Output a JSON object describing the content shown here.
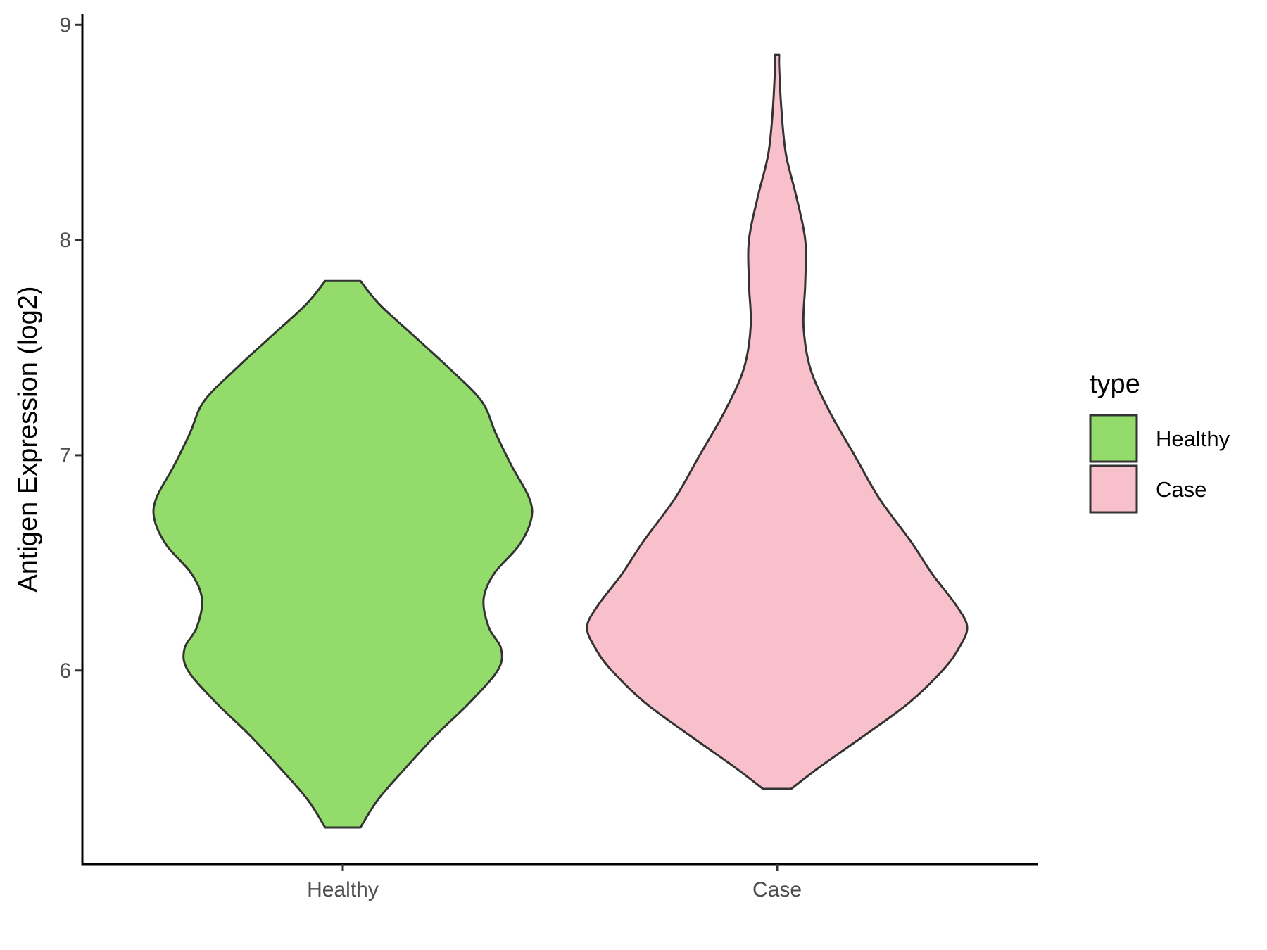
{
  "chart_data": {
    "type": "violin",
    "ylabel": "Antigen Expression (log2)",
    "xlabel": "",
    "ylim": [
      5.1,
      9.05
    ],
    "yticks": [
      6,
      7,
      8,
      9
    ],
    "categories": [
      "Healthy",
      "Case"
    ],
    "legend": {
      "title": "type",
      "placement": "right",
      "entries": [
        {
          "label": "Healthy",
          "color": "#93DB6B"
        },
        {
          "label": "Case",
          "color": "#F8C0CB"
        }
      ]
    },
    "series": [
      {
        "name": "Healthy",
        "color": "#93DB6B",
        "stroke": "#333333",
        "profile": [
          [
            5.27,
            0.1
          ],
          [
            5.4,
            0.2
          ],
          [
            5.55,
            0.36
          ],
          [
            5.7,
            0.53
          ],
          [
            5.85,
            0.72
          ],
          [
            6.0,
            0.88
          ],
          [
            6.1,
            0.9
          ],
          [
            6.2,
            0.83
          ],
          [
            6.33,
            0.8
          ],
          [
            6.45,
            0.86
          ],
          [
            6.58,
            1.0
          ],
          [
            6.7,
            1.07
          ],
          [
            6.8,
            1.06
          ],
          [
            6.95,
            0.96
          ],
          [
            7.1,
            0.87
          ],
          [
            7.25,
            0.79
          ],
          [
            7.4,
            0.61
          ],
          [
            7.55,
            0.41
          ],
          [
            7.7,
            0.21
          ],
          [
            7.81,
            0.1
          ]
        ]
      },
      {
        "name": "Case",
        "color": "#F8C0CB",
        "stroke": "#333333",
        "profile": [
          [
            5.45,
            0.08
          ],
          [
            5.55,
            0.24
          ],
          [
            5.7,
            0.5
          ],
          [
            5.85,
            0.75
          ],
          [
            6.0,
            0.94
          ],
          [
            6.1,
            1.03
          ],
          [
            6.2,
            1.08
          ],
          [
            6.3,
            1.02
          ],
          [
            6.45,
            0.88
          ],
          [
            6.6,
            0.76
          ],
          [
            6.8,
            0.58
          ],
          [
            7.0,
            0.44
          ],
          [
            7.2,
            0.3
          ],
          [
            7.4,
            0.19
          ],
          [
            7.6,
            0.15
          ],
          [
            7.8,
            0.16
          ],
          [
            8.0,
            0.16
          ],
          [
            8.2,
            0.11
          ],
          [
            8.4,
            0.05
          ],
          [
            8.6,
            0.025
          ],
          [
            8.8,
            0.012
          ],
          [
            8.86,
            0.012
          ]
        ]
      }
    ]
  }
}
